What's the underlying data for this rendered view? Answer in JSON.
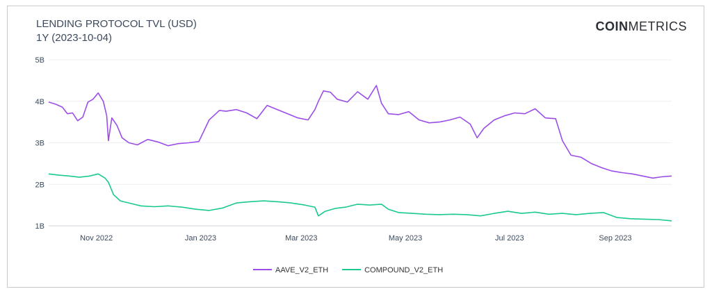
{
  "header": {
    "title_line1": "LENDING PROTOCOL TVL (USD)",
    "title_line2": "1Y (2023-10-04)",
    "brand_bold": "COIN",
    "brand_light": "METRICS"
  },
  "chart_data": {
    "type": "line",
    "title": "LENDING PROTOCOL TVL (USD)",
    "subtitle": "1Y (2023-10-04)",
    "xlabel": "",
    "ylabel": "",
    "xlim": [
      "2022-10-04",
      "2023-10-04"
    ],
    "ylim": [
      1000000000,
      5000000000
    ],
    "yticks": [
      {
        "value": 1000000000,
        "label": "1B"
      },
      {
        "value": 2000000000,
        "label": "2B"
      },
      {
        "value": 3000000000,
        "label": "3B"
      },
      {
        "value": 4000000000,
        "label": "4B"
      },
      {
        "value": 5000000000,
        "label": "5B"
      }
    ],
    "xticks": [
      {
        "value": "2022-11-01",
        "label": "Nov 2022"
      },
      {
        "value": "2023-01-01",
        "label": "Jan 2023"
      },
      {
        "value": "2023-03-01",
        "label": "Mar 2023"
      },
      {
        "value": "2023-05-01",
        "label": "May 2023"
      },
      {
        "value": "2023-07-01",
        "label": "Jul 2023"
      },
      {
        "value": "2023-09-01",
        "label": "Sep 2023"
      }
    ],
    "grid": true,
    "legend": "bottom-center",
    "series": [
      {
        "name": "AAVE_V2_ETH",
        "color": "#9b4de8",
        "x": [
          "2022-10-04",
          "2022-10-08",
          "2022-10-12",
          "2022-10-15",
          "2022-10-18",
          "2022-10-21",
          "2022-10-24",
          "2022-10-27",
          "2022-10-30",
          "2022-11-02",
          "2022-11-05",
          "2022-11-07",
          "2022-11-08",
          "2022-11-10",
          "2022-11-13",
          "2022-11-16",
          "2022-11-20",
          "2022-11-25",
          "2022-12-01",
          "2022-12-07",
          "2022-12-13",
          "2022-12-19",
          "2022-12-25",
          "2022-12-31",
          "2023-01-06",
          "2023-01-12",
          "2023-01-16",
          "2023-01-22",
          "2023-01-28",
          "2023-02-03",
          "2023-02-09",
          "2023-02-15",
          "2023-02-21",
          "2023-02-27",
          "2023-03-05",
          "2023-03-09",
          "2023-03-11",
          "2023-03-14",
          "2023-03-18",
          "2023-03-22",
          "2023-03-28",
          "2023-04-03",
          "2023-04-09",
          "2023-04-14",
          "2023-04-17",
          "2023-04-21",
          "2023-04-27",
          "2023-05-03",
          "2023-05-09",
          "2023-05-15",
          "2023-05-21",
          "2023-05-27",
          "2023-06-02",
          "2023-06-08",
          "2023-06-12",
          "2023-06-16",
          "2023-06-22",
          "2023-06-28",
          "2023-07-04",
          "2023-07-10",
          "2023-07-16",
          "2023-07-22",
          "2023-07-28",
          "2023-08-01",
          "2023-08-06",
          "2023-08-12",
          "2023-08-18",
          "2023-08-24",
          "2023-08-30",
          "2023-09-05",
          "2023-09-11",
          "2023-09-17",
          "2023-09-23",
          "2023-09-28",
          "2023-10-04"
        ],
        "y": [
          3980000000.0,
          3930000000.0,
          3860000000.0,
          3700000000.0,
          3720000000.0,
          3530000000.0,
          3620000000.0,
          3980000000.0,
          4050000000.0,
          4200000000.0,
          4000000000.0,
          3650000000.0,
          3050000000.0,
          3600000000.0,
          3420000000.0,
          3120000000.0,
          3000000000.0,
          2950000000.0,
          3080000000.0,
          3020000000.0,
          2930000000.0,
          2980000000.0,
          3000000000.0,
          3030000000.0,
          3550000000.0,
          3780000000.0,
          3760000000.0,
          3800000000.0,
          3720000000.0,
          3580000000.0,
          3900000000.0,
          3800000000.0,
          3700000000.0,
          3600000000.0,
          3550000000.0,
          3800000000.0,
          4000000000.0,
          4250000000.0,
          4220000000.0,
          4050000000.0,
          3980000000.0,
          4230000000.0,
          4050000000.0,
          4380000000.0,
          3950000000.0,
          3700000000.0,
          3680000000.0,
          3750000000.0,
          3550000000.0,
          3480000000.0,
          3500000000.0,
          3550000000.0,
          3620000000.0,
          3450000000.0,
          3120000000.0,
          3350000000.0,
          3550000000.0,
          3650000000.0,
          3720000000.0,
          3700000000.0,
          3820000000.0,
          3600000000.0,
          3580000000.0,
          3050000000.0,
          2700000000.0,
          2650000000.0,
          2500000000.0,
          2400000000.0,
          2320000000.0,
          2280000000.0,
          2250000000.0,
          2200000000.0,
          2150000000.0,
          2180000000.0,
          2200000000.0
        ]
      },
      {
        "name": "COMPOUND_V2_ETH",
        "color": "#19c98f",
        "x": [
          "2022-10-04",
          "2022-10-10",
          "2022-10-16",
          "2022-10-22",
          "2022-10-28",
          "2022-11-02",
          "2022-11-06",
          "2022-11-08",
          "2022-11-11",
          "2022-11-15",
          "2022-11-20",
          "2022-11-27",
          "2022-12-05",
          "2022-12-13",
          "2022-12-21",
          "2022-12-29",
          "2023-01-06",
          "2023-01-14",
          "2023-01-22",
          "2023-01-30",
          "2023-02-07",
          "2023-02-15",
          "2023-02-23",
          "2023-03-03",
          "2023-03-09",
          "2023-03-11",
          "2023-03-15",
          "2023-03-21",
          "2023-03-27",
          "2023-04-03",
          "2023-04-10",
          "2023-04-17",
          "2023-04-21",
          "2023-04-27",
          "2023-05-05",
          "2023-05-13",
          "2023-05-21",
          "2023-05-29",
          "2023-06-06",
          "2023-06-14",
          "2023-06-22",
          "2023-06-30",
          "2023-07-08",
          "2023-07-16",
          "2023-07-24",
          "2023-08-01",
          "2023-08-09",
          "2023-08-17",
          "2023-08-25",
          "2023-09-02",
          "2023-09-10",
          "2023-09-18",
          "2023-09-26",
          "2023-10-04"
        ],
        "y": [
          2250000000.0,
          2220000000.0,
          2200000000.0,
          2170000000.0,
          2200000000.0,
          2250000000.0,
          2150000000.0,
          2050000000.0,
          1750000000.0,
          1600000000.0,
          1550000000.0,
          1480000000.0,
          1460000000.0,
          1480000000.0,
          1450000000.0,
          1400000000.0,
          1370000000.0,
          1430000000.0,
          1550000000.0,
          1580000000.0,
          1600000000.0,
          1580000000.0,
          1550000000.0,
          1500000000.0,
          1450000000.0,
          1240000000.0,
          1350000000.0,
          1420000000.0,
          1450000000.0,
          1520000000.0,
          1500000000.0,
          1520000000.0,
          1400000000.0,
          1320000000.0,
          1300000000.0,
          1280000000.0,
          1270000000.0,
          1280000000.0,
          1270000000.0,
          1240000000.0,
          1300000000.0,
          1350000000.0,
          1300000000.0,
          1330000000.0,
          1280000000.0,
          1300000000.0,
          1270000000.0,
          1300000000.0,
          1320000000.0,
          1200000000.0,
          1170000000.0,
          1160000000.0,
          1150000000.0,
          1120000000.0
        ]
      }
    ]
  }
}
